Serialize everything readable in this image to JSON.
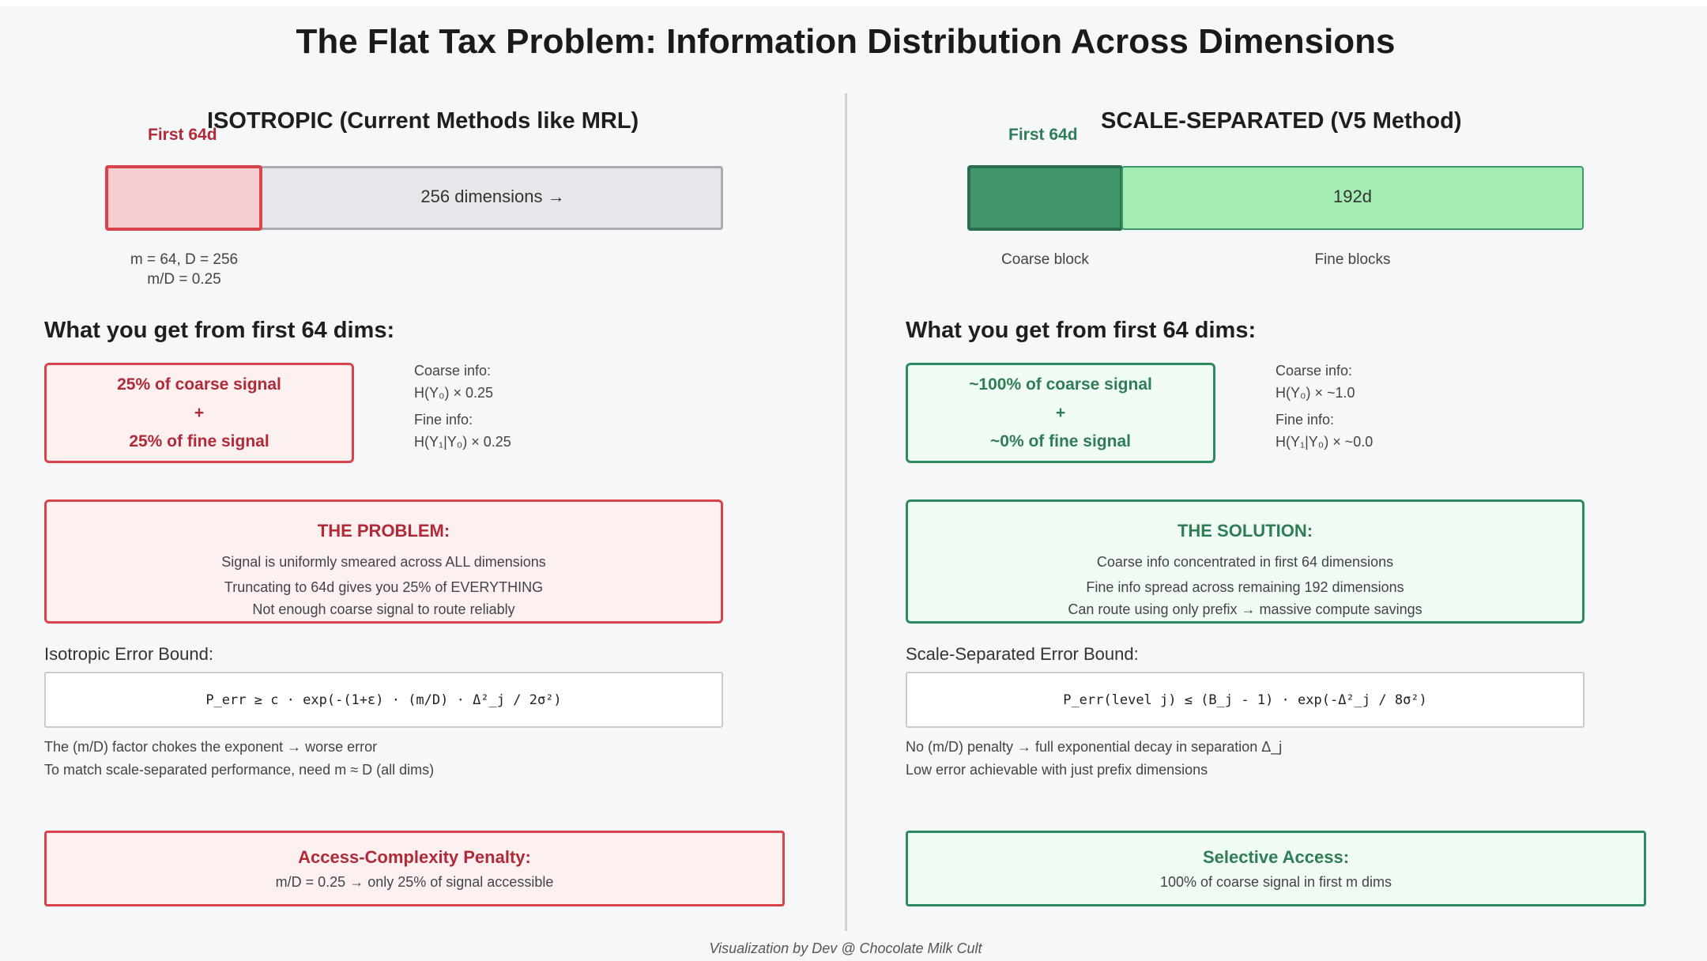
{
  "title": "The Flat Tax Problem: Information Distribution Across Dimensions",
  "left": {
    "heading": "ISOTROPIC (Current Methods like MRL)",
    "first_label": "First 64d",
    "bar_label": "256 dimensions →",
    "params_line1": "m = 64, D = 256",
    "params_line2": "m/D = 0.25",
    "what_heading": "What you get from first 64 dims:",
    "signal_line1": "25% of coarse signal",
    "signal_plus": "+",
    "signal_line2": "25% of fine signal",
    "coarse_info_label": "Coarse info:",
    "coarse_info_value": "H(Y₀) × 0.25",
    "fine_info_label": "Fine info:",
    "fine_info_value": "H(Y₁|Y₀) × 0.25",
    "callout_title": "THE PROBLEM:",
    "callout_lines": [
      "Signal is uniformly smeared across ALL dimensions",
      "Truncating to 64d gives you 25% of EVERYTHING",
      "Not enough coarse signal to route reliably"
    ],
    "bound_label": "Isotropic Error Bound:",
    "formula": "P_err ≥ c · exp(-(1+ε) · (m/D) · Δ²_j / 2σ²)",
    "notes": [
      "The (m/D) factor chokes the exponent → worse error",
      "To match scale-separated performance, need m ≈ D (all dims)"
    ],
    "access_title": "Access-Complexity Penalty:",
    "access_line": "m/D = 0.25 → only 25% of signal accessible"
  },
  "right": {
    "heading": "SCALE-SEPARATED (V5 Method)",
    "first_label": "First 64d",
    "bar_label": "192d",
    "coarse_block_label": "Coarse block",
    "fine_blocks_label": "Fine blocks",
    "what_heading": "What you get from first 64 dims:",
    "signal_line1": "~100% of coarse signal",
    "signal_plus": "+",
    "signal_line2": "~0% of fine signal",
    "coarse_info_label": "Coarse info:",
    "coarse_info_value": "H(Y₀) × ~1.0",
    "fine_info_label": "Fine info:",
    "fine_info_value": "H(Y₁|Y₀) × ~0.0",
    "callout_title": "THE SOLUTION:",
    "callout_lines": [
      "Coarse info concentrated in first 64 dimensions",
      "Fine info spread across remaining 192 dimensions",
      "Can route using only prefix → massive compute savings"
    ],
    "bound_label": "Scale-Separated Error Bound:",
    "formula": "P_err(level j) ≤ (B_j - 1) · exp(-Δ²_j / 8σ²)",
    "notes": [
      "No (m/D) penalty → full exponential decay in separation Δ_j",
      "Low error achievable with just prefix dimensions"
    ],
    "access_title": "Selective Access:",
    "access_line": "100% of coarse signal in first m dims"
  },
  "footer": "Visualization by Dev @ Chocolate Milk Cult",
  "colors": {
    "problem_red": "#b02a37",
    "solution_green": "#2e7d57",
    "red_border": "#d9434b",
    "green_border": "#2e8b5f"
  }
}
